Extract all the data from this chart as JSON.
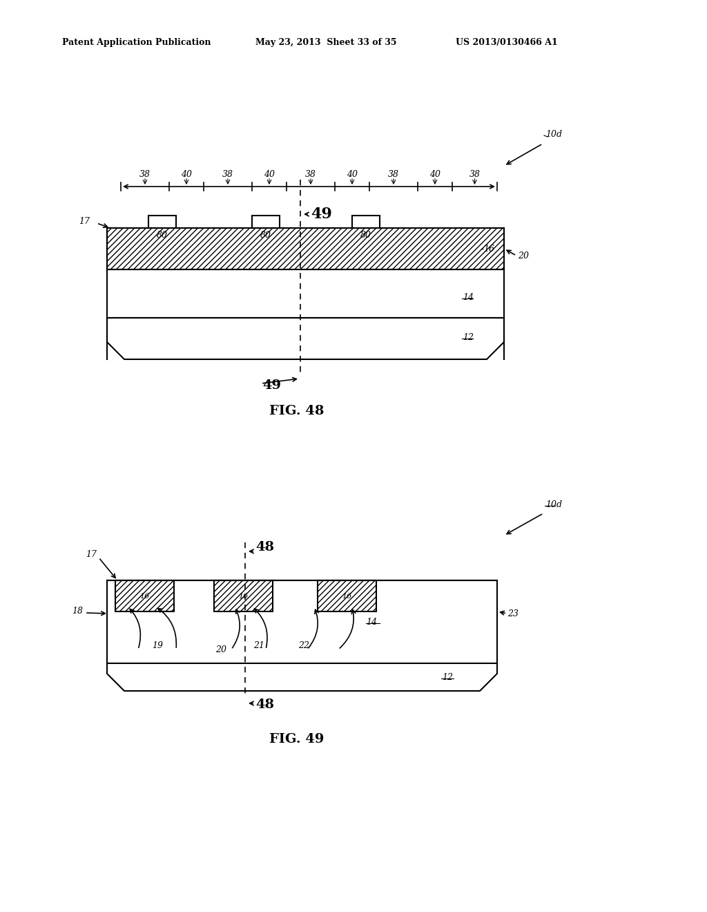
{
  "bg_color": "#ffffff",
  "header_text": "Patent Application Publication",
  "header_date": "May 23, 2013  Sheet 33 of 35",
  "header_patent": "US 2013/0130466 A1",
  "fig48_label": "FIG. 48",
  "fig49_label": "FIG. 49",
  "fig48_ref": "10d",
  "fig49_ref": "10d"
}
